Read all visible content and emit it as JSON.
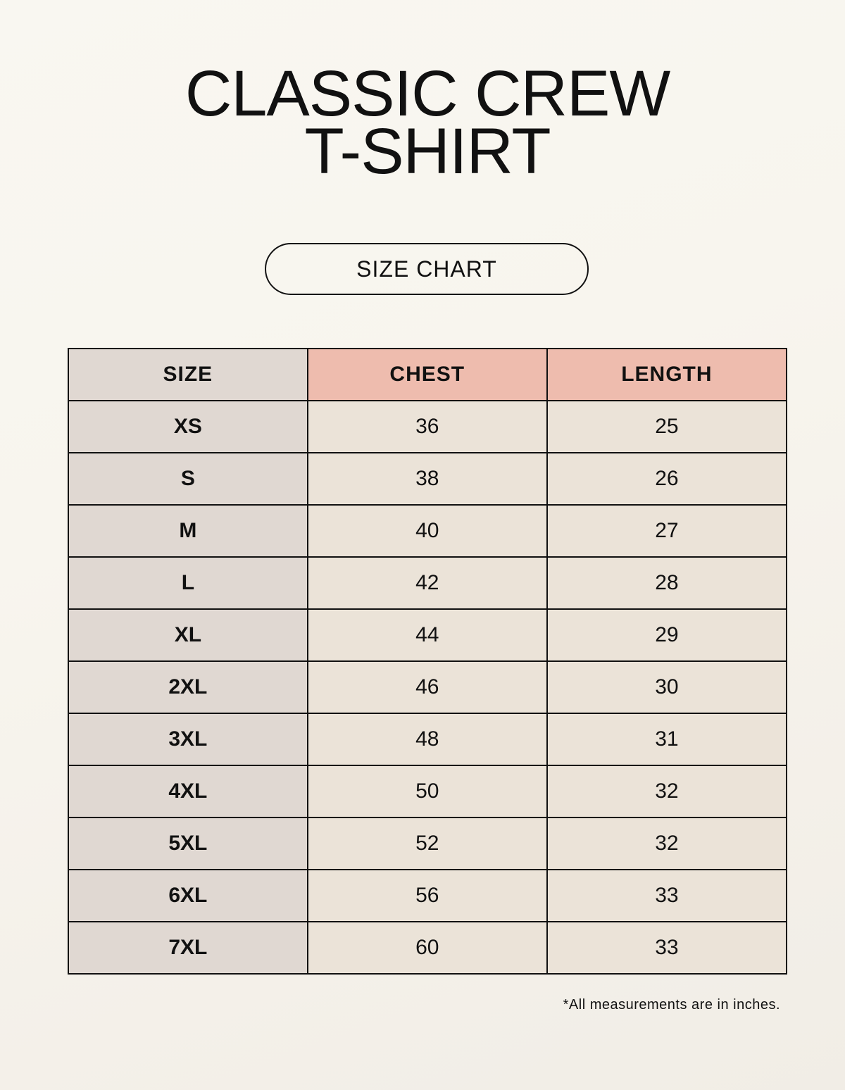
{
  "title": {
    "line1": "CLASSIC CREW",
    "line2": "T-SHIRT"
  },
  "badge": "SIZE CHART",
  "table": {
    "headers": [
      "SIZE",
      "CHEST",
      "LENGTH"
    ],
    "rows": [
      [
        "XS",
        "36",
        "25"
      ],
      [
        "S",
        "38",
        "26"
      ],
      [
        "M",
        "40",
        "27"
      ],
      [
        "L",
        "42",
        "28"
      ],
      [
        "XL",
        "44",
        "29"
      ],
      [
        "2XL",
        "46",
        "30"
      ],
      [
        "3XL",
        "48",
        "31"
      ],
      [
        "4XL",
        "50",
        "32"
      ],
      [
        "5XL",
        "52",
        "32"
      ],
      [
        "6XL",
        "56",
        "33"
      ],
      [
        "7XL",
        "60",
        "33"
      ]
    ]
  },
  "footnote": "*All measurements are in inches.",
  "colors": {
    "size_column": "#e0d8d2",
    "header_accent": "#eebcae",
    "cell": "#ebe3d8"
  }
}
